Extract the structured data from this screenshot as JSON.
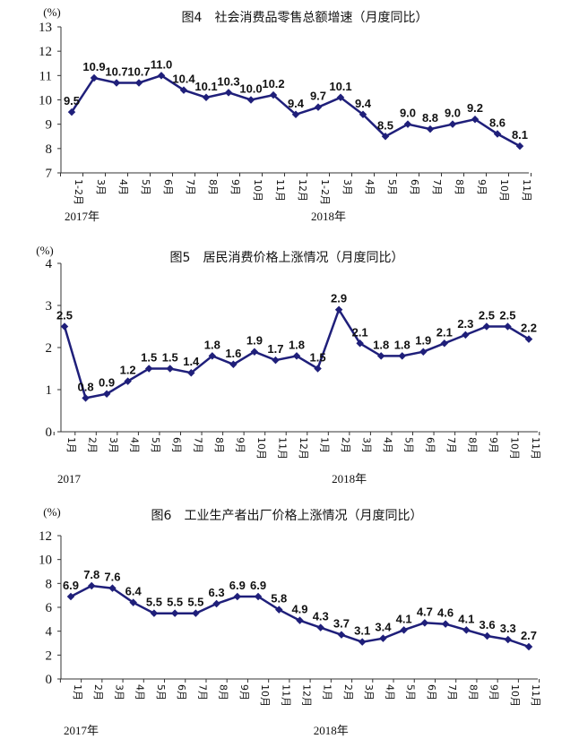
{
  "chart_data": [
    {
      "type": "line",
      "title": "图4　社会消费品零售总额增速（月度同比）",
      "unit": "(%)",
      "categories": [
        "1-2月",
        "3月",
        "4月",
        "5月",
        "6月",
        "7月",
        "8月",
        "9月",
        "10月",
        "11月",
        "12月",
        "1-2月",
        "3月",
        "4月",
        "5月",
        "6月",
        "7月",
        "8月",
        "9月",
        "10月",
        "11月"
      ],
      "values": [
        9.5,
        10.9,
        10.7,
        10.7,
        11.0,
        10.4,
        10.1,
        10.3,
        10.0,
        10.2,
        9.4,
        9.7,
        10.1,
        9.4,
        8.5,
        9.0,
        8.8,
        9.0,
        9.2,
        8.6,
        8.1
      ],
      "value_labels": [
        "9.5",
        "10.9",
        "10.7",
        "10.7",
        "11.0",
        "10.4",
        "10.1",
        "10.3",
        "10.0",
        "10.2",
        "9.4",
        "9.7",
        "10.1",
        "9.4",
        "8.5",
        "9.0",
        "8.8",
        "9.0",
        "9.2",
        "8.6",
        "8.1"
      ],
      "y_ticks": [
        "13",
        "12",
        "11",
        "10",
        "9",
        "8",
        "7"
      ],
      "ylim": [
        7,
        13
      ],
      "years": [
        {
          "label": "2017年",
          "index": 0
        },
        {
          "label": "2018年",
          "index": 11
        }
      ],
      "color": "#1f1f7a"
    },
    {
      "type": "line",
      "title": "图5　居民消费价格上涨情况（月度同比）",
      "unit": "(%)",
      "categories": [
        "1月",
        "2月",
        "3月",
        "4月",
        "5月",
        "6月",
        "7月",
        "8月",
        "9月",
        "10月",
        "11月",
        "12月",
        "1月",
        "2月",
        "3月",
        "4月",
        "5月",
        "6月",
        "7月",
        "8月",
        "9月",
        "10月",
        "11月"
      ],
      "values": [
        2.5,
        0.8,
        0.9,
        1.2,
        1.5,
        1.5,
        1.4,
        1.8,
        1.6,
        1.9,
        1.7,
        1.8,
        1.5,
        2.9,
        2.1,
        1.8,
        1.8,
        1.9,
        2.1,
        2.3,
        2.5,
        2.5,
        2.2
      ],
      "value_labels": [
        "2.5",
        "0.8",
        "0.9",
        "1.2",
        "1.5",
        "1.5",
        "1.4",
        "1.8",
        "1.6",
        "1.9",
        "1.7",
        "1.8",
        "1.5",
        "2.9",
        "2.1",
        "1.8",
        "1.8",
        "1.9",
        "2.1",
        "2.3",
        "2.5",
        "2.5",
        "2.2"
      ],
      "y_ticks": [
        "4",
        "3",
        "2",
        "1",
        "0"
      ],
      "ylim": [
        0,
        4
      ],
      "years": [
        {
          "label": "2017",
          "index": 0
        },
        {
          "label": "2018年",
          "index": 13
        }
      ],
      "color": "#1f1f7a"
    },
    {
      "type": "line",
      "title": "图6　工业生产者出厂价格上涨情况（月度同比）",
      "unit": "(%)",
      "categories": [
        "1月",
        "2月",
        "3月",
        "4月",
        "5月",
        "6月",
        "7月",
        "8月",
        "9月",
        "10月",
        "11月",
        "12月",
        "1月",
        "2月",
        "3月",
        "4月",
        "5月",
        "6月",
        "7月",
        "8月",
        "9月",
        "10月",
        "11月"
      ],
      "values": [
        6.9,
        7.8,
        7.6,
        6.4,
        5.5,
        5.5,
        5.5,
        6.3,
        6.9,
        6.9,
        5.8,
        4.9,
        4.3,
        3.7,
        3.1,
        3.4,
        4.1,
        4.7,
        4.6,
        4.1,
        3.6,
        3.3,
        2.7
      ],
      "value_labels": [
        "6.9",
        "7.8",
        "7.6",
        "6.4",
        "5.5",
        "5.5",
        "5.5",
        "6.3",
        "6.9",
        "6.9",
        "5.8",
        "4.9",
        "4.3",
        "3.7",
        "3.1",
        "3.4",
        "4.1",
        "4.7",
        "4.6",
        "4.1",
        "3.6",
        "3.3",
        "2.7"
      ],
      "y_ticks": [
        "12",
        "10",
        "8",
        "6",
        "4",
        "2",
        "0"
      ],
      "ylim": [
        0,
        12
      ],
      "years": [
        {
          "label": "2017年",
          "index": 0
        },
        {
          "label": "2018年",
          "index": 12
        }
      ],
      "color": "#1f1f7a"
    }
  ]
}
